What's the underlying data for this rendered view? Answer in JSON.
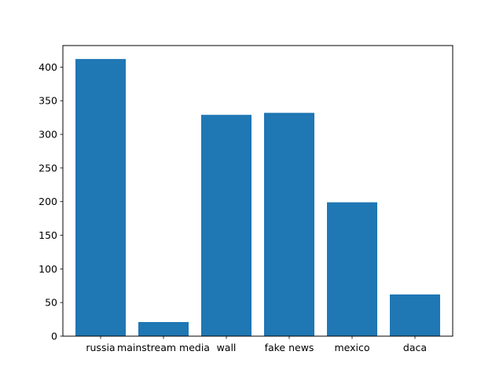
{
  "chart_data": {
    "type": "bar",
    "title": "",
    "xlabel": "",
    "ylabel": "",
    "categories": [
      "russia",
      "mainstream media",
      "wall",
      "fake news",
      "mexico",
      "daca"
    ],
    "values": [
      412,
      21,
      329,
      332,
      199,
      62
    ],
    "ylim": [
      0,
      432
    ],
    "yticks": [
      0,
      50,
      100,
      150,
      200,
      250,
      300,
      350,
      400
    ],
    "ytick_labels": [
      "0",
      "50",
      "100",
      "150",
      "200",
      "250",
      "300",
      "350",
      "400"
    ],
    "grid": false,
    "legend": "none",
    "colors": {
      "bar": "#1f77b4",
      "axis": "#000000",
      "background": "#ffffff"
    }
  }
}
